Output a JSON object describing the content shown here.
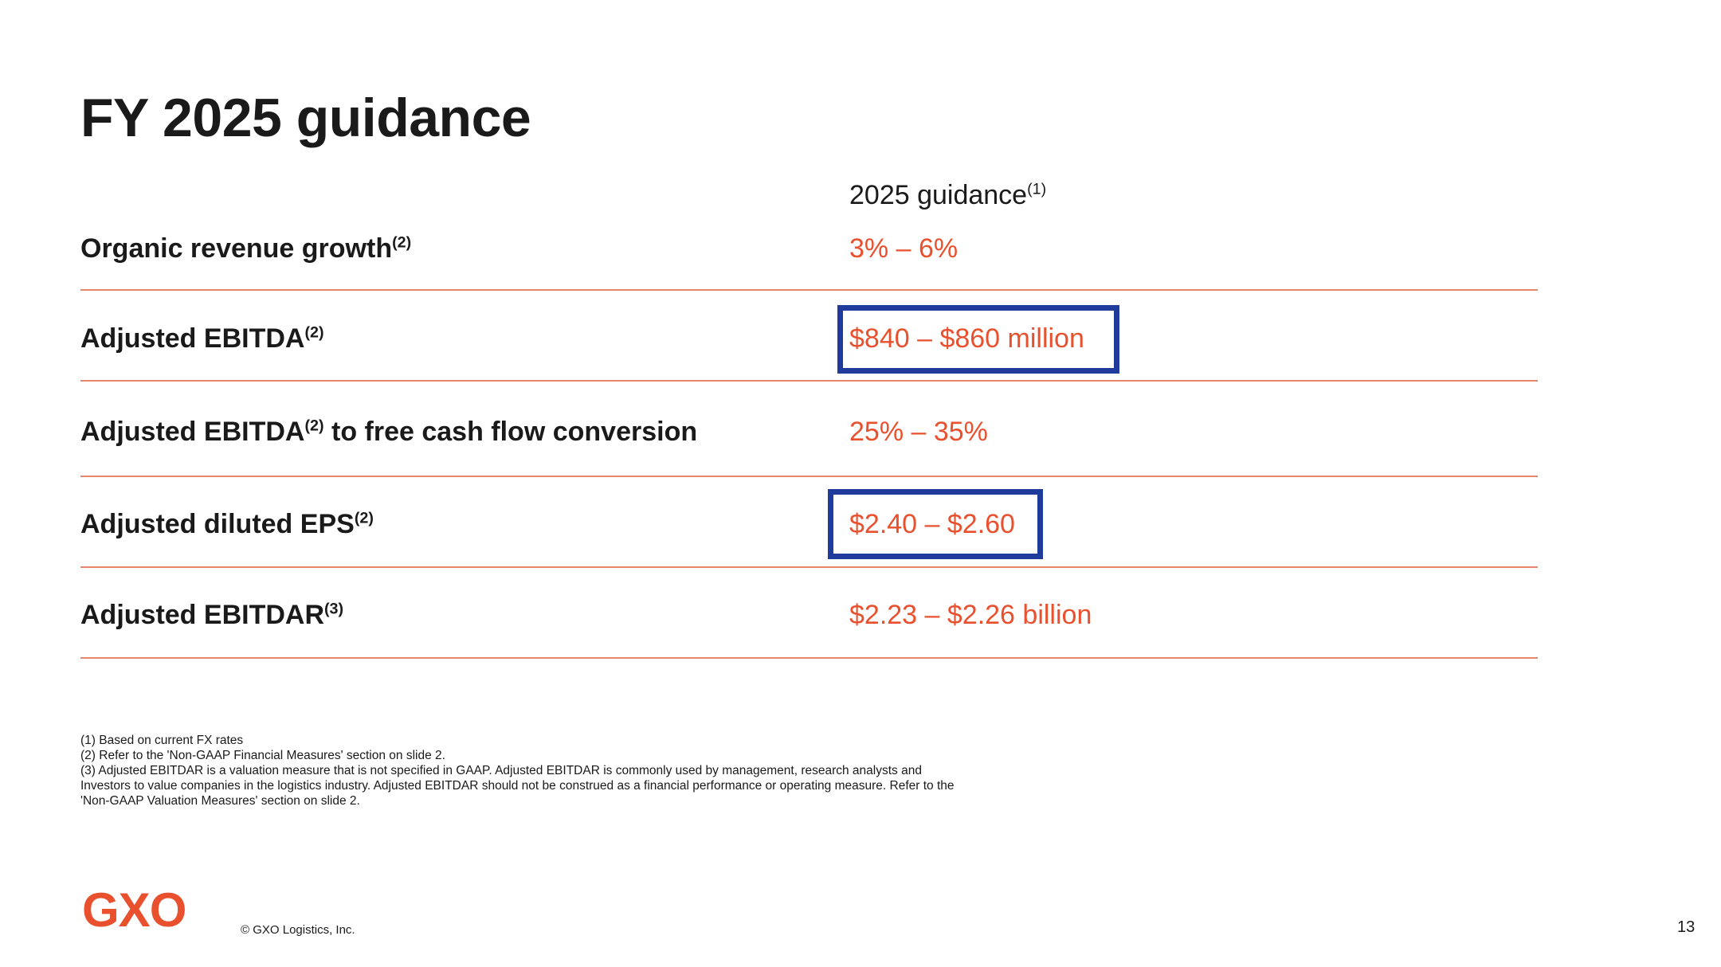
{
  "title": "FY 2025 guidance",
  "column_header": {
    "label": "2025 guidance",
    "note": "(1)"
  },
  "rows": [
    {
      "label": "Organic revenue growth",
      "note": "(2)",
      "suffix": "",
      "value": "3% – 6%"
    },
    {
      "label": "Adjusted EBITDA",
      "note": "(2)",
      "suffix": "",
      "value": "$840 – $860 million"
    },
    {
      "label": "Adjusted EBITDA",
      "note": "(2)",
      "suffix": " to free cash flow conversion",
      "value": "25% – 35%"
    },
    {
      "label": "Adjusted diluted EPS",
      "note": "(2)",
      "suffix": "",
      "value": "$2.40 – $2.60"
    },
    {
      "label": "Adjusted EBITDAR",
      "note": "(3)",
      "suffix": "",
      "value": "$2.23 – $2.26 billion"
    }
  ],
  "footnotes": [
    "(1) Based on current FX rates",
    "(2) Refer to the 'Non-GAAP Financial Measures' section on slide 2.",
    "(3) Adjusted EBITDAR is a valuation measure that is not specified in GAAP. Adjusted EBITDAR is commonly used by management, research analysts and Investors to value companies in the logistics industry. Adjusted EBITDAR should not be construed as a financial performance or operating measure. Refer to the 'Non-GAAP Valuation Measures' section on slide 2."
  ],
  "logo_text": "GXO",
  "copyright": "© GXO Logistics, Inc.",
  "page_number": "13",
  "colors": {
    "accent": "#e8502e",
    "divider": "#e8866c",
    "highlight": "#1f3c9c",
    "text": "#1a1a1a"
  }
}
